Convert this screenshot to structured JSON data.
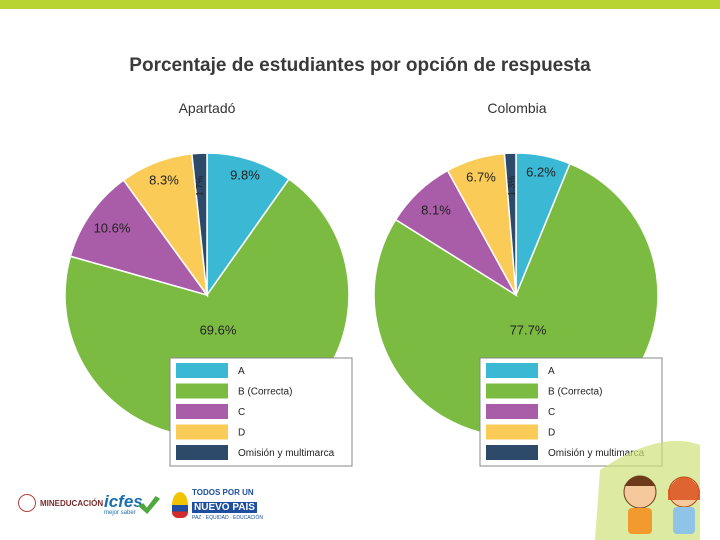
{
  "slide": {
    "title": "Porcentaje de estudiantes por opción de respuesta",
    "stripe_color": "#b7d433",
    "footer": {
      "mineducacion": "MINEDUCACIÓN",
      "icfes": "icfes",
      "icfes_sub": "mejor saber",
      "pais_line1": "TODOS POR UN",
      "pais_line2": "NUEVO PAÍS",
      "pais_line3": "PAZ · EQUIDAD · EDUCACIÓN"
    }
  },
  "chart_data": [
    {
      "type": "pie",
      "title": "Apartadó",
      "categories": [
        "A",
        "B (Correcta)",
        "C",
        "D",
        "Omisión y multimarca"
      ],
      "values": [
        9.8,
        69.6,
        10.6,
        8.3,
        1.7
      ],
      "labels": [
        "9.8%",
        "69.6%",
        "10.6%",
        "8.3%",
        "1.7%"
      ],
      "colors": [
        "#3bb8d3",
        "#7cbb42",
        "#a95ca8",
        "#fbcb57",
        "#2e4a6b"
      ],
      "legend": [
        "A",
        "B (Correcta)",
        "C",
        "D",
        "Omisión y multimarca"
      ],
      "legend_position": "bottom-right"
    },
    {
      "type": "pie",
      "title": "Colombia",
      "categories": [
        "A",
        "B (Correcta)",
        "C",
        "D",
        "Omisión y multimarca"
      ],
      "values": [
        6.2,
        77.7,
        8.1,
        6.7,
        1.3
      ],
      "labels": [
        "6.2%",
        "77.7%",
        "8.1%",
        "6.7%",
        "1.3%"
      ],
      "colors": [
        "#3bb8d3",
        "#7cbb42",
        "#a95ca8",
        "#fbcb57",
        "#2e4a6b"
      ],
      "legend": [
        "A",
        "B (Correcta)",
        "C",
        "D",
        "Omisión y multimarca"
      ],
      "legend_position": "bottom-right"
    }
  ]
}
